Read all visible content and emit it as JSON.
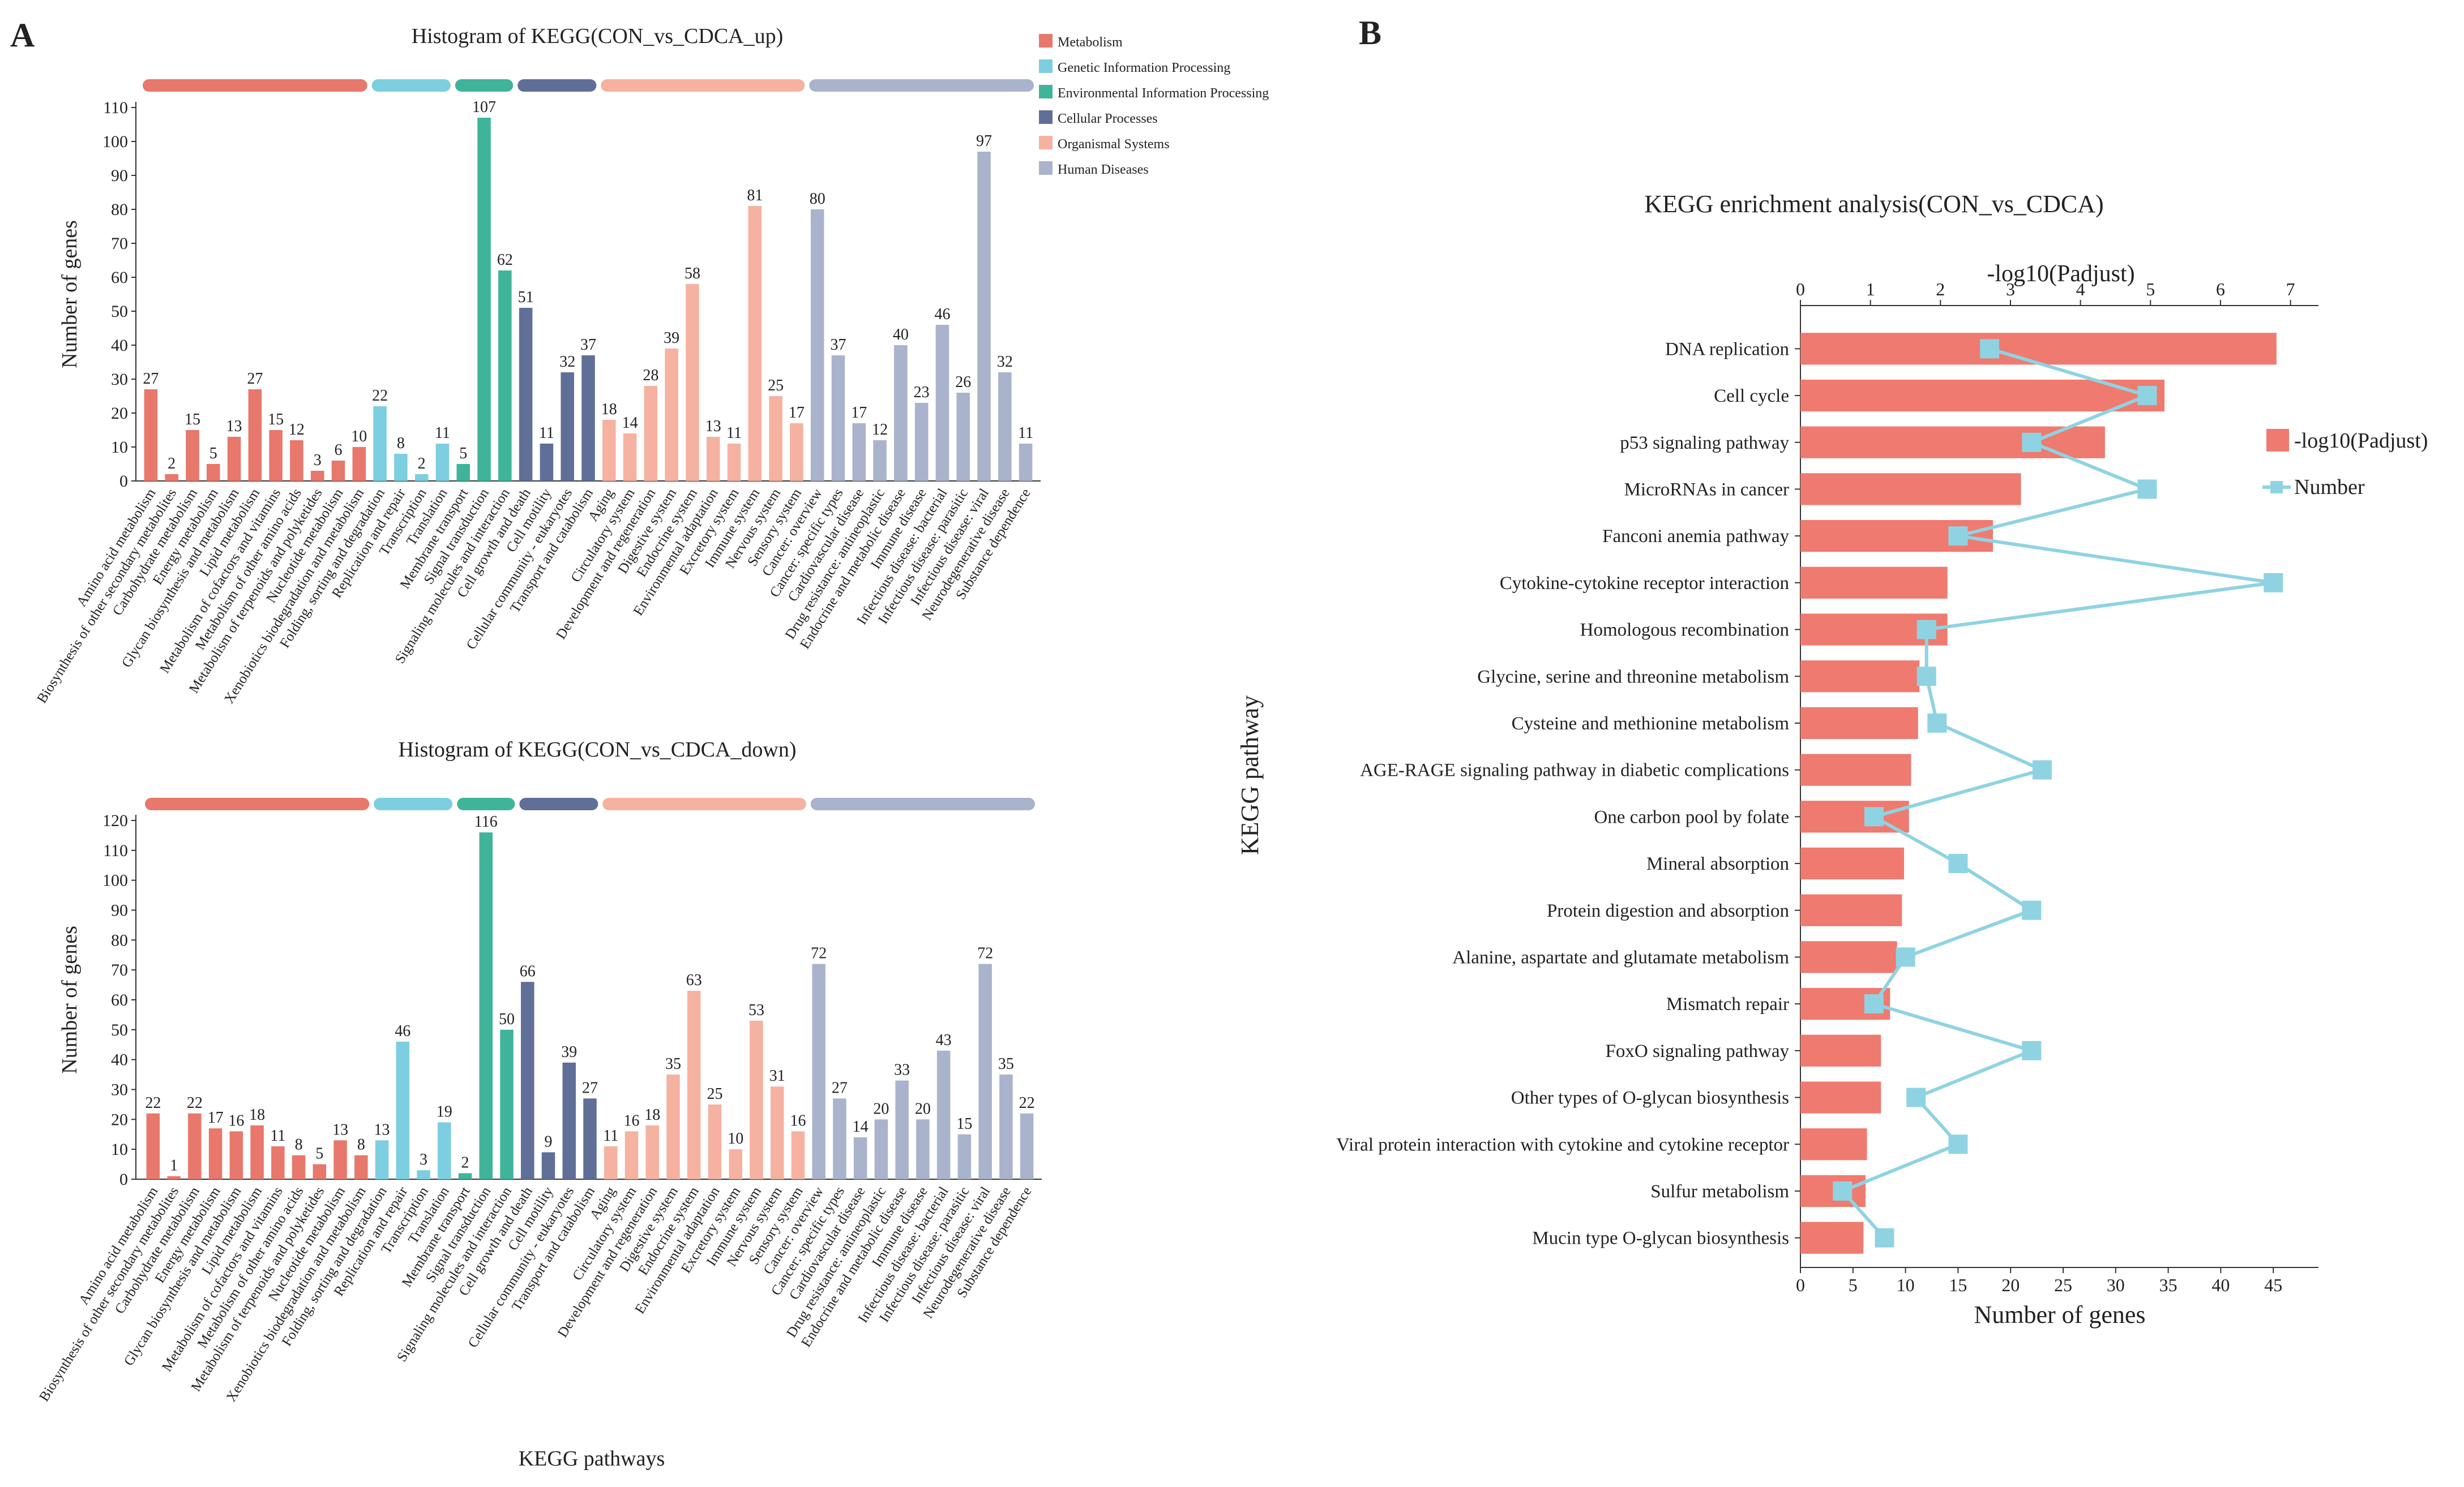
{
  "panels": {
    "a": "A",
    "b": "B"
  },
  "colors": {
    "Metabolism": "#e8776c",
    "Genetic Information Processing": "#7ccee0",
    "Environmental Information Processing": "#3fb49a",
    "Cellular Processes": "#5f6f98",
    "Organismal Systems": "#f5b2a0",
    "Human Diseases": "#a9b3cc",
    "bar_b": "#ef7a6f",
    "line_b": "#8fd3e2"
  },
  "shared": {
    "legend": [
      "Metabolism",
      "Genetic Information Processing",
      "Environmental Information Processing",
      "Cellular Processes",
      "Organismal Systems",
      "Human Diseases"
    ],
    "pathways": [
      "Amino acid metabolism",
      "Biosynthesis of other secondary metabolites",
      "Carbohydrate metabolism",
      "Energy metabolism",
      "Glycan biosynthesis and metabolism",
      "Lipid metabolism",
      "Metabolism of cofactors and vitamins",
      "Metabolism of other amino acids",
      "Metabolism of terpenoids and polyketides",
      "Nucleotide metabolism",
      "Xenobiotics biodegradation and metabolism",
      "Folding, sorting and degradation",
      "Replication and repair",
      "Transcription",
      "Translation",
      "Membrane transport",
      "Signal transduction",
      "Signaling molecules and interaction",
      "Cell growth and death",
      "Cell motility",
      "Cellular community - eukaryotes",
      "Transport and catabolism",
      "Aging",
      "Circulatory system",
      "Development and regeneration",
      "Digestive system",
      "Endocrine system",
      "Environmental adaptation",
      "Excretory system",
      "Immune system",
      "Nervous system",
      "Sensory system",
      "Cancer: overview",
      "Cancer: specific types",
      "Cardiovascular disease",
      "Drug resistance: antineoplastic",
      "Endocrine and metabolic disease",
      "Immune disease",
      "Infectious disease: bacterial",
      "Infectious disease: parasitic",
      "Infectious disease: viral",
      "Neurodegenerative disease",
      "Substance dependence"
    ],
    "category_index": [
      0,
      0,
      0,
      0,
      0,
      0,
      0,
      0,
      0,
      0,
      0,
      1,
      1,
      1,
      1,
      2,
      2,
      2,
      3,
      3,
      3,
      3,
      4,
      4,
      4,
      4,
      4,
      4,
      4,
      4,
      4,
      4,
      5,
      5,
      5,
      5,
      5,
      5,
      5,
      5,
      5,
      5,
      5
    ]
  },
  "chart_data": [
    {
      "type": "bar",
      "title": "Histogram of KEGG(CON_vs_CDCA_up)",
      "xlabel": "",
      "ylabel": "Number of genes",
      "ylim": [
        0,
        110
      ],
      "yticks": [
        0,
        10,
        20,
        30,
        40,
        50,
        60,
        70,
        80,
        90,
        100,
        110
      ],
      "values": [
        27,
        2,
        15,
        5,
        13,
        27,
        15,
        12,
        3,
        6,
        10,
        22,
        8,
        2,
        11,
        5,
        107,
        62,
        51,
        11,
        32,
        37,
        18,
        14,
        28,
        39,
        58,
        13,
        11,
        81,
        25,
        17,
        80,
        37,
        17,
        12,
        40,
        23,
        46,
        26,
        97,
        32,
        11
      ]
    },
    {
      "type": "bar",
      "title": "Histogram of KEGG(CON_vs_CDCA_down)",
      "xlabel": "KEGG pathways",
      "ylabel": "Number of genes",
      "ylim": [
        0,
        120
      ],
      "yticks": [
        0,
        10,
        20,
        30,
        40,
        50,
        60,
        70,
        80,
        90,
        100,
        110,
        120
      ],
      "values": [
        22,
        1,
        22,
        17,
        16,
        18,
        11,
        8,
        5,
        13,
        8,
        13,
        46,
        3,
        19,
        2,
        116,
        50,
        66,
        9,
        39,
        27,
        11,
        16,
        18,
        35,
        63,
        25,
        10,
        53,
        31,
        16,
        72,
        27,
        14,
        20,
        33,
        20,
        43,
        15,
        72,
        35,
        22
      ]
    },
    {
      "type": "bar",
      "orientation": "horizontal",
      "title": "KEGG enrichment analysis(CON_vs_CDCA)",
      "ylabel": "KEGG pathway",
      "top_axis": {
        "label": "-log10(Padjust)",
        "ticks": [
          0,
          1,
          2,
          3,
          4,
          5,
          6,
          7
        ],
        "lim": [
          0,
          7.4
        ]
      },
      "bottom_axis": {
        "label": "Number of genes",
        "ticks": [
          0,
          5,
          10,
          15,
          20,
          25,
          30,
          35,
          40,
          45
        ],
        "lim": [
          0,
          49.3
        ]
      },
      "legend": {
        "bar": "-log10(Padjust)",
        "line": "Number"
      },
      "categories": [
        "DNA replication",
        "Cell cycle",
        "p53 signaling pathway",
        "MicroRNAs in cancer",
        "Fanconi anemia pathway",
        "Cytokine-cytokine receptor interaction",
        "Homologous recombination",
        "Glycine, serine and threonine metabolism",
        "Cysteine and methionine metabolism",
        "AGE-RAGE signaling pathway in diabetic complications",
        "One carbon pool by folate",
        "Mineral absorption",
        "Protein digestion and absorption",
        "Alanine, aspartate and glutamate metabolism",
        "Mismatch repair",
        "FoxO signaling pathway",
        "Other types of O-glycan biosynthesis",
        "Viral protein interaction with cytokine and cytokine receptor",
        "Sulfur metabolism",
        "Mucin type O-glycan biosynthesis"
      ],
      "bar_values": [
        6.8,
        5.2,
        4.35,
        3.15,
        2.75,
        2.1,
        2.1,
        1.7,
        1.68,
        1.58,
        1.55,
        1.48,
        1.45,
        1.38,
        1.28,
        1.15,
        1.15,
        0.95,
        0.93,
        0.9
      ],
      "line_values": [
        18,
        33,
        22,
        33,
        15,
        45,
        12,
        12,
        13,
        23,
        7,
        15,
        22,
        10,
        7,
        22,
        11,
        15,
        4,
        8
      ]
    }
  ]
}
